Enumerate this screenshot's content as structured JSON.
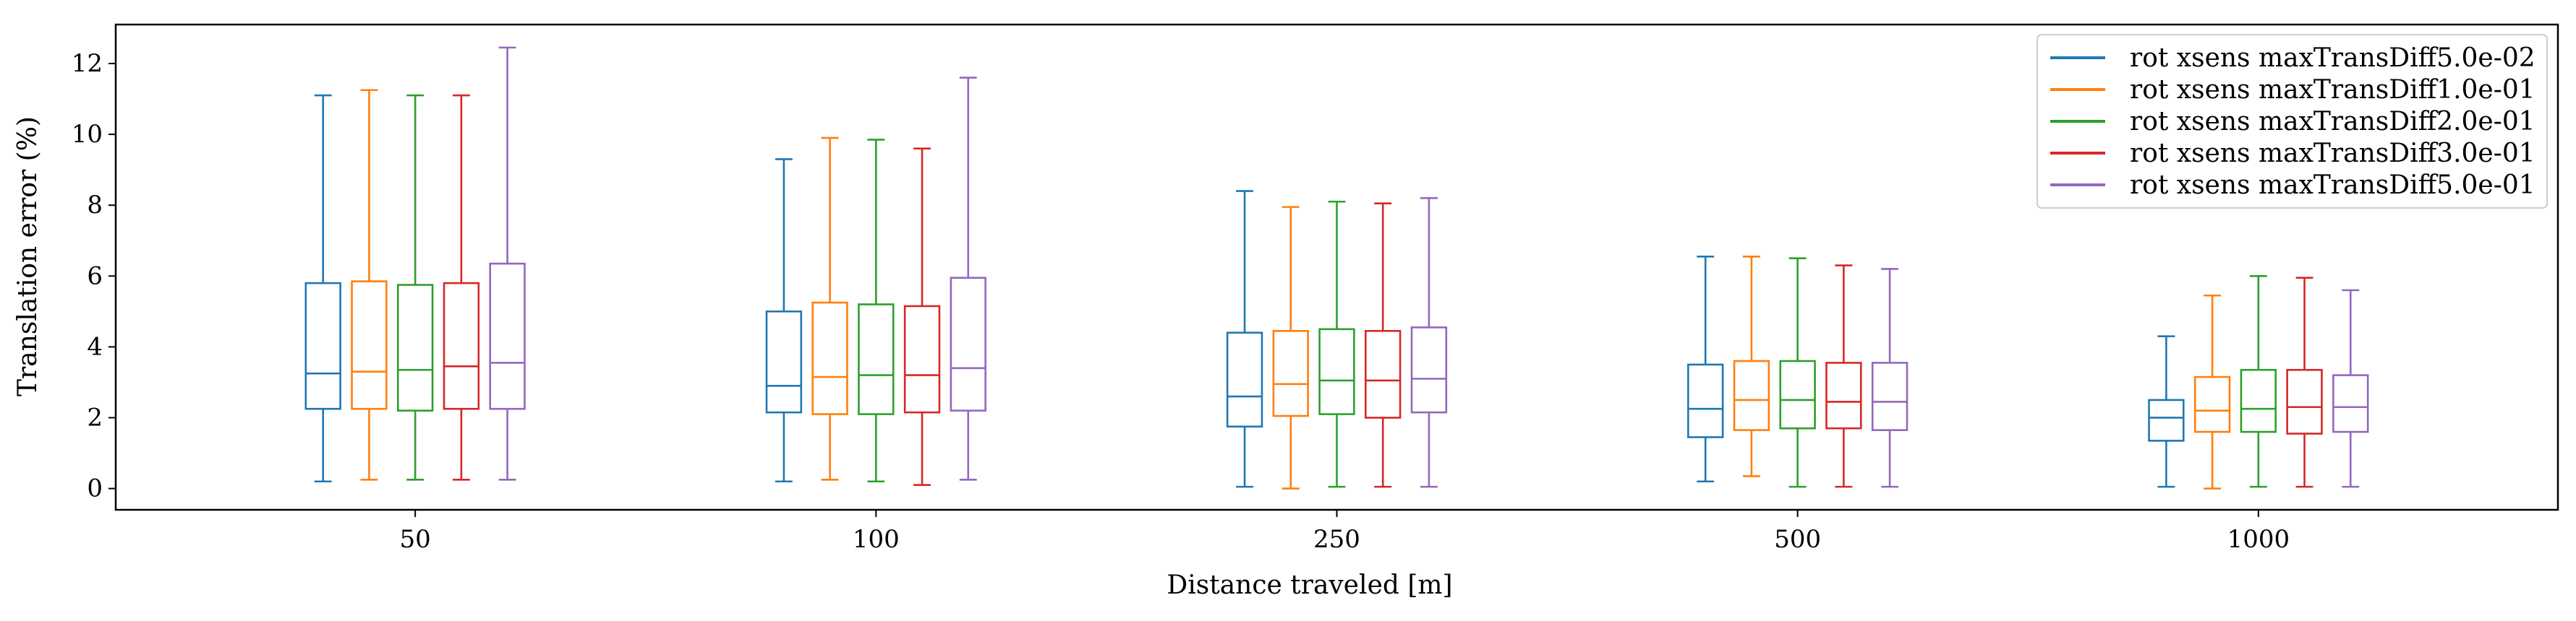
{
  "chart_data": {
    "type": "box",
    "xlabel": "Distance traveled [m]",
    "ylabel": "Translation error (%)",
    "categories": [
      "50",
      "100",
      "250",
      "500",
      "1000"
    ],
    "ylim": [
      -0.6,
      13.1
    ],
    "yticks": [
      0,
      2,
      4,
      6,
      8,
      10,
      12
    ],
    "legend_position": "top-right",
    "grid": false,
    "series": [
      {
        "name": "rot xsens maxTransDiff5.0e-02",
        "color": "#1f77b4",
        "boxes": [
          {
            "whislo": 0.2,
            "q1": 2.25,
            "med": 3.25,
            "q3": 5.8,
            "whishi": 11.1
          },
          {
            "whislo": 0.2,
            "q1": 2.15,
            "med": 2.9,
            "q3": 5.0,
            "whishi": 9.3
          },
          {
            "whislo": 0.05,
            "q1": 1.75,
            "med": 2.6,
            "q3": 4.4,
            "whishi": 8.4
          },
          {
            "whislo": 0.2,
            "q1": 1.45,
            "med": 2.25,
            "q3": 3.5,
            "whishi": 6.55
          },
          {
            "whislo": 0.05,
            "q1": 1.35,
            "med": 2.0,
            "q3": 2.5,
            "whishi": 4.3
          }
        ]
      },
      {
        "name": "rot xsens maxTransDiff1.0e-01",
        "color": "#ff7f0e",
        "boxes": [
          {
            "whislo": 0.25,
            "q1": 2.25,
            "med": 3.3,
            "q3": 5.85,
            "whishi": 11.25
          },
          {
            "whislo": 0.25,
            "q1": 2.1,
            "med": 3.15,
            "q3": 5.25,
            "whishi": 9.9
          },
          {
            "whislo": 0.0,
            "q1": 2.05,
            "med": 2.95,
            "q3": 4.45,
            "whishi": 7.95
          },
          {
            "whislo": 0.35,
            "q1": 1.65,
            "med": 2.5,
            "q3": 3.6,
            "whishi": 6.55
          },
          {
            "whislo": 0.0,
            "q1": 1.6,
            "med": 2.2,
            "q3": 3.15,
            "whishi": 5.45
          }
        ]
      },
      {
        "name": "rot xsens maxTransDiff2.0e-01",
        "color": "#2ca02c",
        "boxes": [
          {
            "whislo": 0.25,
            "q1": 2.2,
            "med": 3.35,
            "q3": 5.75,
            "whishi": 11.1
          },
          {
            "whislo": 0.2,
            "q1": 2.1,
            "med": 3.2,
            "q3": 5.2,
            "whishi": 9.85
          },
          {
            "whislo": 0.05,
            "q1": 2.1,
            "med": 3.05,
            "q3": 4.5,
            "whishi": 8.1
          },
          {
            "whislo": 0.05,
            "q1": 1.7,
            "med": 2.5,
            "q3": 3.6,
            "whishi": 6.5
          },
          {
            "whislo": 0.05,
            "q1": 1.6,
            "med": 2.25,
            "q3": 3.35,
            "whishi": 6.0
          }
        ]
      },
      {
        "name": "rot xsens maxTransDiff3.0e-01",
        "color": "#d62728",
        "boxes": [
          {
            "whislo": 0.25,
            "q1": 2.25,
            "med": 3.45,
            "q3": 5.8,
            "whishi": 11.1
          },
          {
            "whislo": 0.1,
            "q1": 2.15,
            "med": 3.2,
            "q3": 5.15,
            "whishi": 9.6
          },
          {
            "whislo": 0.05,
            "q1": 2.0,
            "med": 3.05,
            "q3": 4.45,
            "whishi": 8.05
          },
          {
            "whislo": 0.05,
            "q1": 1.7,
            "med": 2.45,
            "q3": 3.55,
            "whishi": 6.3
          },
          {
            "whislo": 0.05,
            "q1": 1.55,
            "med": 2.3,
            "q3": 3.35,
            "whishi": 5.95
          }
        ]
      },
      {
        "name": "rot xsens maxTransDiff5.0e-01",
        "color": "#9467bd",
        "boxes": [
          {
            "whislo": 0.25,
            "q1": 2.25,
            "med": 3.55,
            "q3": 6.35,
            "whishi": 12.45
          },
          {
            "whislo": 0.25,
            "q1": 2.2,
            "med": 3.4,
            "q3": 5.95,
            "whishi": 11.6
          },
          {
            "whislo": 0.05,
            "q1": 2.15,
            "med": 3.1,
            "q3": 4.55,
            "whishi": 8.2
          },
          {
            "whislo": 0.05,
            "q1": 1.65,
            "med": 2.45,
            "q3": 3.55,
            "whishi": 6.2
          },
          {
            "whislo": 0.05,
            "q1": 1.6,
            "med": 2.3,
            "q3": 3.2,
            "whishi": 5.6
          }
        ]
      }
    ]
  }
}
